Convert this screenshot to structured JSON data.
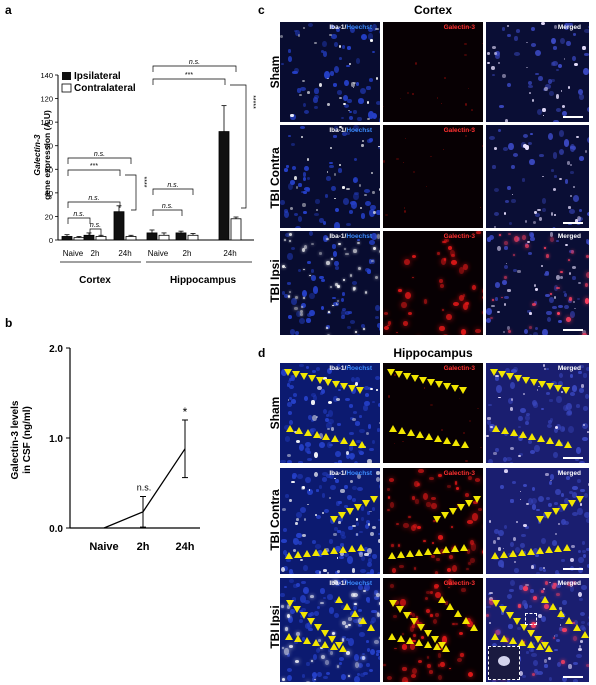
{
  "panels": {
    "a": "a",
    "b": "b",
    "c": "c",
    "d": "d"
  },
  "panel_a": {
    "ylabel_line1": "Galectin-3",
    "ylabel_line2": "gene expression (A.U)",
    "legend": [
      "Ipsilateral",
      "Contralateral"
    ],
    "groups": [
      "Cortex",
      "Hippocampus"
    ],
    "sig": {
      "ns": "n.s.",
      "three": "***",
      "four": "****",
      "five": "*****"
    }
  },
  "panel_b": {
    "ylabel_line1": "Galectin-3 levels",
    "ylabel_line2": "in CSF (ng/ml)",
    "sig_2h": "n.s.",
    "sig_24h": "*"
  },
  "panel_c": {
    "title": "Cortex",
    "rows": [
      "Sham",
      "TBI Contra",
      "TBI Ipsi"
    ],
    "channels": {
      "iba_a": "Iba-1/",
      "iba_b": "Hoechst",
      "gal": "Galectin-3",
      "merged": "Merged"
    }
  },
  "panel_d": {
    "title": "Hippocampus",
    "rows": [
      "Sham",
      "TBI Contra",
      "TBI Ipsi"
    ],
    "channels": {
      "iba_a": "Iba-1/",
      "iba_b": "Hoechst",
      "gal": "Galectin-3",
      "merged": "Merged"
    }
  },
  "colors": {
    "ipsilateral": "#111111",
    "contralateral": "#ffffff",
    "hoechst": "#2f6bd8",
    "galectin": "#e02020",
    "arrowhead": "#f2e600"
  },
  "chart_data": [
    {
      "type": "bar",
      "panel": "a",
      "categories": [
        "Naive",
        "2h",
        "24h",
        "Naive",
        "2h",
        "24h"
      ],
      "group_labels": [
        "Cortex",
        "Hippocampus"
      ],
      "ylim": [
        0,
        140
      ],
      "yticks": [
        0,
        20,
        40,
        60,
        80,
        100,
        120,
        140
      ],
      "series": [
        {
          "name": "Ipsilateral",
          "values": [
            3,
            4,
            24,
            6,
            6,
            92
          ],
          "errors": [
            1.5,
            2,
            5,
            2.5,
            1.5,
            22
          ]
        },
        {
          "name": "Contralateral",
          "values": [
            2,
            3,
            3,
            4,
            4,
            18
          ],
          "errors": [
            1,
            1,
            1,
            2,
            1.5,
            1.5
          ]
        }
      ]
    },
    {
      "type": "line",
      "panel": "b",
      "categories": [
        "Naive",
        "2h",
        "24h"
      ],
      "values": [
        0.0,
        0.18,
        0.88
      ],
      "errors": [
        0,
        0.17,
        0.32
      ],
      "ylim": [
        0,
        2.0
      ],
      "yticks": [
        "0.0",
        "1.0",
        "2.0"
      ]
    }
  ]
}
